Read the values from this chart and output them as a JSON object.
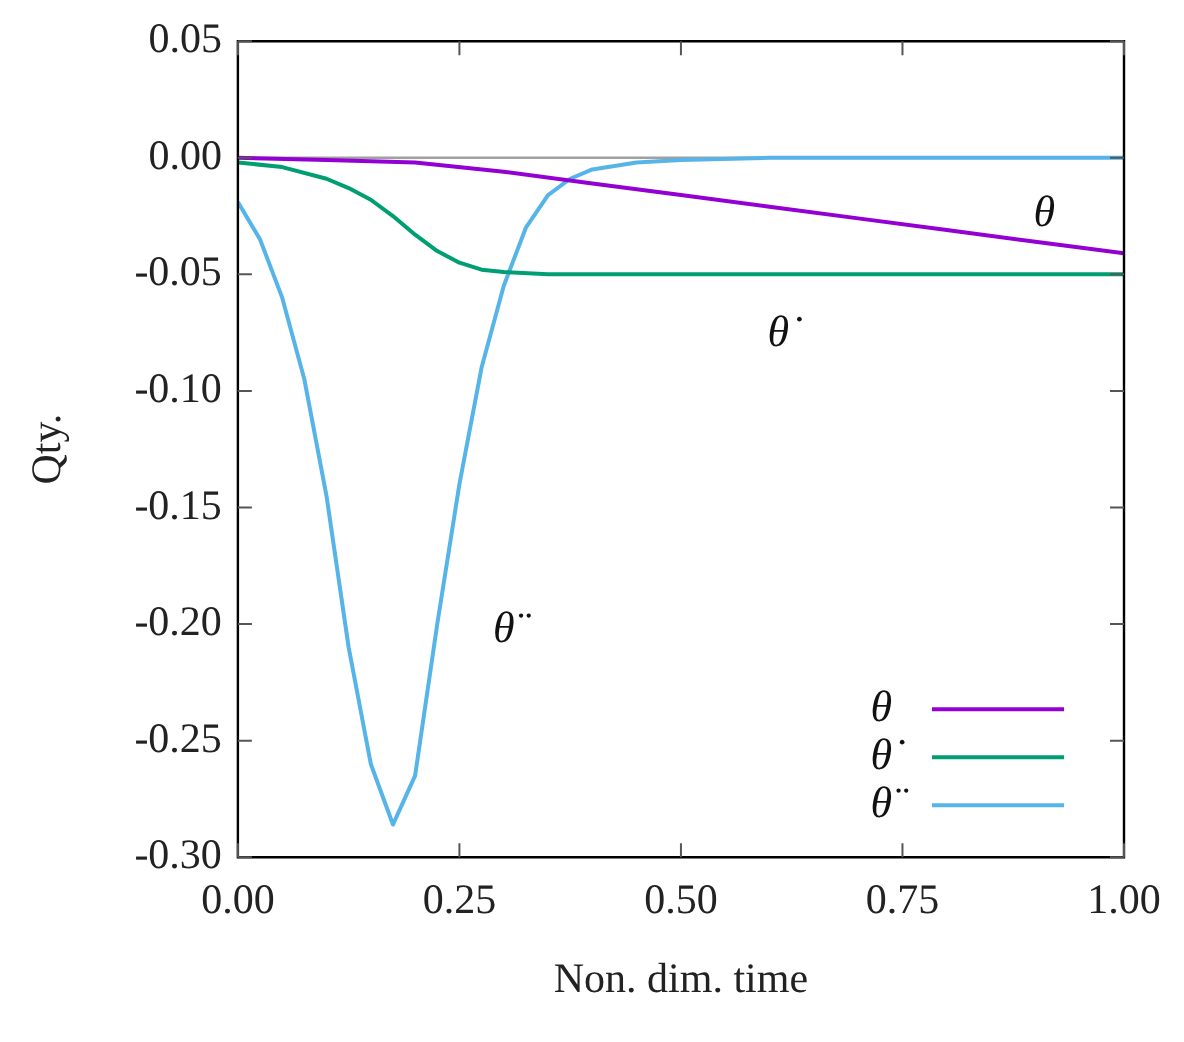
{
  "chart_data": {
    "type": "line",
    "xlabel": "Non. dim. time",
    "ylabel": "Qty.",
    "xlim": [
      0,
      1
    ],
    "ylim": [
      -0.3,
      0.05
    ],
    "xticks": [
      {
        "value": 0,
        "label": "0.00"
      },
      {
        "value": 0.25,
        "label": "0.25"
      },
      {
        "value": 0.5,
        "label": "0.50"
      },
      {
        "value": 0.75,
        "label": "0.75"
      },
      {
        "value": 1,
        "label": "1.00"
      }
    ],
    "yticks": [
      {
        "value": 0.05,
        "label": "0.05"
      },
      {
        "value": 0,
        "label": "0.00"
      },
      {
        "value": -0.05,
        "label": "-0.05"
      },
      {
        "value": -0.1,
        "label": "-0.10"
      },
      {
        "value": -0.15,
        "label": "-0.15"
      },
      {
        "value": -0.2,
        "label": "-0.20"
      },
      {
        "value": -0.25,
        "label": "-0.25"
      },
      {
        "value": -0.3,
        "label": "-0.30"
      }
    ],
    "grid": false,
    "legend": "bottom right",
    "marker": "none",
    "line_style": "solid",
    "ref_lines": [
      {
        "axis": "y",
        "value": 0,
        "color": "#a0a0a0"
      }
    ],
    "series": [
      {
        "name": "θ",
        "color": "#9400d3",
        "x": [
          0,
          0.1,
          0.2,
          0.3,
          0.4,
          0.5,
          0.6,
          0.7,
          0.8,
          0.9,
          1
        ],
        "values": [
          0,
          -0.001,
          -0.002,
          -0.006,
          -0.011,
          -0.016,
          -0.021,
          -0.026,
          -0.031,
          -0.036,
          -0.041
        ]
      },
      {
        "name": "θ̇",
        "color": "#009e73",
        "x": [
          0,
          0.05,
          0.1,
          0.125,
          0.15,
          0.175,
          0.2,
          0.225,
          0.25,
          0.275,
          0.3,
          0.35,
          0.4,
          1
        ],
        "values": [
          -0.002,
          -0.004,
          -0.009,
          -0.013,
          -0.018,
          -0.025,
          -0.033,
          -0.04,
          -0.045,
          -0.048,
          -0.049,
          -0.05,
          -0.05,
          -0.05
        ]
      },
      {
        "name": "θ̈",
        "color": "#56b4e9",
        "x": [
          0,
          0.025,
          0.05,
          0.075,
          0.1,
          0.125,
          0.15,
          0.175,
          0.2,
          0.225,
          0.25,
          0.275,
          0.3,
          0.325,
          0.35,
          0.375,
          0.4,
          0.45,
          0.5,
          0.6,
          1
        ],
        "values": [
          -0.019,
          -0.035,
          -0.06,
          -0.095,
          -0.145,
          -0.21,
          -0.26,
          -0.286,
          -0.265,
          -0.2,
          -0.14,
          -0.09,
          -0.055,
          -0.03,
          -0.016,
          -0.009,
          -0.005,
          -0.002,
          -0.001,
          0,
          0
        ]
      }
    ]
  }
}
